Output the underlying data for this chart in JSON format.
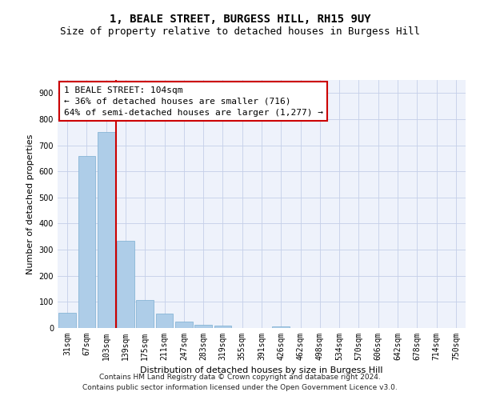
{
  "title": "1, BEALE STREET, BURGESS HILL, RH15 9UY",
  "subtitle": "Size of property relative to detached houses in Burgess Hill",
  "xlabel": "Distribution of detached houses by size in Burgess Hill",
  "ylabel": "Number of detached properties",
  "footnote1": "Contains HM Land Registry data © Crown copyright and database right 2024.",
  "footnote2": "Contains public sector information licensed under the Open Government Licence v3.0.",
  "categories": [
    "31sqm",
    "67sqm",
    "103sqm",
    "139sqm",
    "175sqm",
    "211sqm",
    "247sqm",
    "283sqm",
    "319sqm",
    "355sqm",
    "391sqm",
    "426sqm",
    "462sqm",
    "498sqm",
    "534sqm",
    "570sqm",
    "606sqm",
    "642sqm",
    "678sqm",
    "714sqm",
    "750sqm"
  ],
  "values": [
    57,
    660,
    750,
    335,
    108,
    55,
    25,
    12,
    8,
    0,
    0,
    7,
    0,
    0,
    0,
    0,
    0,
    0,
    0,
    0,
    0
  ],
  "bar_color": "#aecde8",
  "bar_edge_color": "#7aaed0",
  "red_line_x": 2.5,
  "annotation_line0": "1 BEALE STREET: 104sqm",
  "annotation_line1": "← 36% of detached houses are smaller (716)",
  "annotation_line2": "64% of semi-detached houses are larger (1,277) →",
  "ylim": [
    0,
    950
  ],
  "yticks": [
    0,
    100,
    200,
    300,
    400,
    500,
    600,
    700,
    800,
    900
  ],
  "background_color": "#eef2fb",
  "grid_color": "#c5cfe8",
  "box_edge_color": "#cc0000",
  "red_line_color": "#cc0000",
  "title_fontsize": 10,
  "subtitle_fontsize": 9,
  "axis_label_fontsize": 8,
  "tick_fontsize": 7,
  "annotation_fontsize": 8,
  "footnote_fontsize": 6.5
}
